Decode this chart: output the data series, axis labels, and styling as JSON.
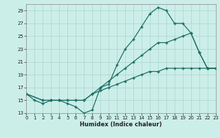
{
  "background_color": "#cceee8",
  "grid_color": "#aad4ce",
  "line_color": "#1a6e64",
  "xlim": [
    0,
    23
  ],
  "ylim": [
    13,
    30
  ],
  "yticks": [
    13,
    15,
    17,
    19,
    21,
    23,
    25,
    27,
    29
  ],
  "xticks": [
    0,
    1,
    2,
    3,
    4,
    5,
    6,
    7,
    8,
    9,
    10,
    11,
    12,
    13,
    14,
    15,
    16,
    17,
    18,
    19,
    20,
    21,
    22,
    23
  ],
  "xlabel": "Humidex (Indice chaleur)",
  "series1_x": [
    0,
    1,
    2,
    3,
    4,
    5,
    6,
    7,
    8,
    9,
    10,
    11,
    12,
    13,
    14,
    15,
    16,
    17,
    18,
    19,
    20,
    21,
    22,
    23
  ],
  "series1_y": [
    16,
    15,
    14.5,
    15,
    15,
    14.5,
    14,
    13,
    13.5,
    17,
    17.5,
    20.5,
    23,
    24.5,
    26.5,
    28.5,
    29.5,
    29,
    27,
    27,
    25.5,
    22.5,
    20,
    20
  ],
  "series2_x": [
    0,
    2,
    3,
    4,
    5,
    6,
    7,
    8,
    9,
    10,
    11,
    12,
    13,
    14,
    15,
    16,
    17,
    18,
    19,
    20,
    21,
    22,
    23
  ],
  "series2_y": [
    16,
    15,
    15,
    15,
    15,
    15,
    15,
    16,
    17,
    18,
    19,
    20,
    21,
    22,
    23,
    24,
    24,
    24.5,
    25,
    25.5,
    22.5,
    20,
    20
  ],
  "series3_x": [
    0,
    2,
    3,
    4,
    5,
    6,
    7,
    8,
    9,
    10,
    11,
    12,
    13,
    14,
    15,
    16,
    17,
    18,
    19,
    20,
    21,
    22,
    23
  ],
  "series3_y": [
    16,
    15,
    15,
    15,
    15,
    15,
    15,
    16,
    16.5,
    17,
    17.5,
    18,
    18.5,
    19,
    19.5,
    19.5,
    20,
    20,
    20,
    20,
    20,
    20,
    20
  ]
}
